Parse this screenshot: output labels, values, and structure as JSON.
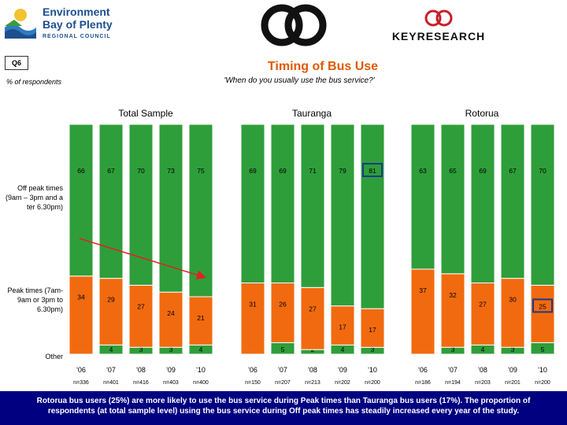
{
  "header": {
    "env_line1": "Environment",
    "env_line2": "Bay of Plenty",
    "env_line3": "REGIONAL COUNCIL",
    "key_logo_text": "KEYRESEARCH"
  },
  "question_badge": "Q6",
  "title": "Timing of Bus Use",
  "subtitle": "'When do you usually use the bus service?'",
  "pct_label": "% of respondents",
  "colors": {
    "offpeak": "#2e9e3a",
    "peak": "#f26a0f",
    "other": "#2e9e3a",
    "highlight": "#1a3a8a",
    "arrow": "#e21f26"
  },
  "chart_data": {
    "type": "bar",
    "stacked": true,
    "ylim": [
      0,
      100
    ],
    "row_labels": [
      "Off peak times (9am – 3pm and after 6.30pm)",
      "Peak times (7am-9am or 3pm to 6.30pm)",
      "Other"
    ],
    "panels": [
      {
        "title": "Total Sample",
        "categories": [
          "'06",
          "'07",
          "'08",
          "'09",
          "'10"
        ],
        "n": [
          "n=336",
          "n=401",
          "n=416",
          "n=403",
          "n=400"
        ],
        "series": [
          {
            "values": [
              66,
              67,
              70,
              73,
              75
            ]
          },
          {
            "values": [
              34,
              29,
              27,
              24,
              21
            ]
          },
          {
            "values": [
              0,
              4,
              3,
              3,
              4
            ]
          }
        ]
      },
      {
        "title": "Tauranga",
        "categories": [
          "'06",
          "'07",
          "'08",
          "'09",
          "'10"
        ],
        "n": [
          "n=150",
          "n=207",
          "n=213",
          "n=202",
          "n=200"
        ],
        "series": [
          {
            "values": [
              69,
              69,
              71,
              79,
              81
            ]
          },
          {
            "values": [
              31,
              26,
              27,
              17,
              17
            ]
          },
          {
            "values": [
              0,
              5,
              2,
              4,
              3
            ]
          }
        ]
      },
      {
        "title": "Rotorua",
        "categories": [
          "'06",
          "'07",
          "'08",
          "'09",
          "'10"
        ],
        "n": [
          "n=186",
          "n=194",
          "n=203",
          "n=201",
          "n=200"
        ],
        "series": [
          {
            "values": [
              63,
              65,
              69,
              67,
              70
            ]
          },
          {
            "values": [
              37,
              32,
              27,
              30,
              25
            ]
          },
          {
            "values": [
              0,
              3,
              4,
              3,
              5
            ]
          }
        ]
      }
    ],
    "highlight": [
      {
        "panel": 1,
        "index": 4,
        "series": 0
      },
      {
        "panel": 2,
        "index": 4,
        "series": 1
      }
    ],
    "trend_arrow": {
      "panel": 0,
      "from_index": 0,
      "to_index": 4
    }
  },
  "commentary": {
    "line1": "Rotorua bus users (25%) are more likely to use the bus service during Peak times than Tauranga bus users (17%).  The proportion of",
    "line2": "respondents (at total sample level) using the bus service during Off peak times has steadily increased every year of the study."
  }
}
